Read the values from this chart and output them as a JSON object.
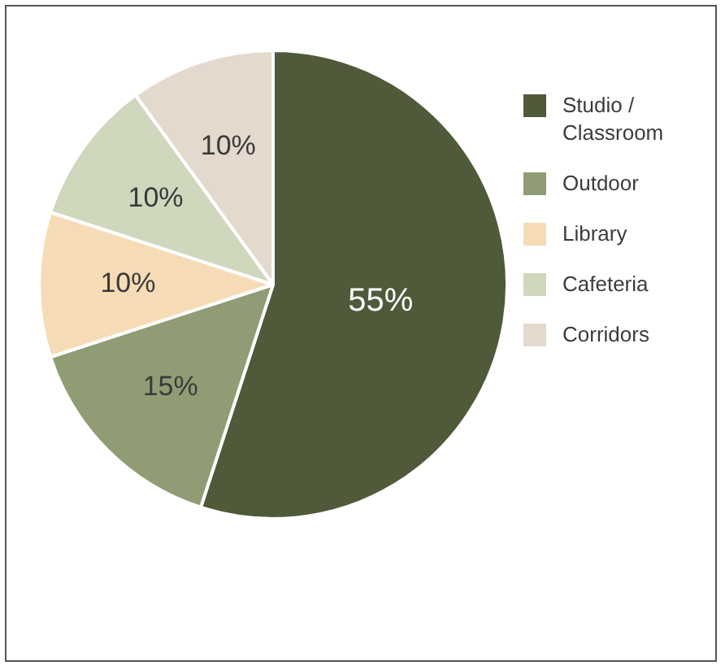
{
  "chart_data": {
    "type": "pie",
    "categories": [
      "Studio / Classroom",
      "Outdoor",
      "Library",
      "Cafeteria",
      "Corridors"
    ],
    "values": [
      55,
      15,
      10,
      10,
      10
    ],
    "value_labels": [
      "55%",
      "15%",
      "10%",
      "10%",
      "10%"
    ],
    "colors": [
      "#4e5a39",
      "#909c74",
      "#f6dcb6",
      "#cfd7bc",
      "#e4d9cd"
    ],
    "legend": "right"
  }
}
